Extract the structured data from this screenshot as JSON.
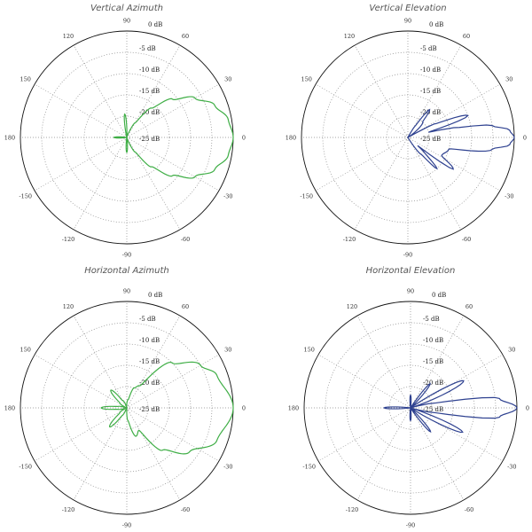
{
  "chart_data": [
    {
      "type": "polar-line",
      "title": "Vertical Azimuth",
      "color": "#3fae46",
      "r_unit": "dB",
      "r_range": [
        -25,
        0
      ],
      "ring_labels": [
        "0 dB",
        "-5 dB",
        "-10 dB",
        "-15 dB",
        "-20 dB",
        "-25 dB"
      ],
      "angle_labels": [
        "0",
        "30",
        "60",
        "90",
        "120",
        "150",
        "180",
        "-150",
        "-120",
        "-90",
        "-60",
        "-30"
      ],
      "points": [
        [
          -180,
          -22
        ],
        [
          -170,
          -25
        ],
        [
          -100,
          -25
        ],
        [
          -90,
          -21.5
        ],
        [
          -80,
          -25
        ],
        [
          -75,
          -25
        ],
        [
          -70,
          -24
        ],
        [
          -60,
          -21
        ],
        [
          -50,
          -16
        ],
        [
          -40,
          -11
        ],
        [
          -30,
          -6.5
        ],
        [
          -20,
          -3
        ],
        [
          -10,
          -0.8
        ],
        [
          0,
          0
        ],
        [
          10,
          -0.8
        ],
        [
          20,
          -3
        ],
        [
          30,
          -6.5
        ],
        [
          40,
          -11
        ],
        [
          50,
          -16
        ],
        [
          60,
          -21
        ],
        [
          70,
          -24
        ],
        [
          78,
          -25
        ],
        [
          86,
          -25
        ],
        [
          95,
          -19.5
        ],
        [
          104,
          -25
        ],
        [
          170,
          -25
        ],
        [
          180,
          -22
        ]
      ]
    },
    {
      "type": "polar-line",
      "title": "Vertical Elevation",
      "color": "#2e4190",
      "r_unit": "dB",
      "r_range": [
        -25,
        0
      ],
      "ring_labels": [
        "0 dB",
        "-5 dB",
        "-10 dB",
        "-15 dB",
        "-20 dB",
        "-25 dB"
      ],
      "angle_labels": [
        "0",
        "30",
        "60",
        "90",
        "120",
        "150",
        "180",
        "-150",
        "-120",
        "-90",
        "-60",
        "-30"
      ],
      "points": [
        [
          -180,
          -25
        ],
        [
          -60,
          -25
        ],
        [
          -52,
          -20
        ],
        [
          -47,
          -15
        ],
        [
          -42,
          -20
        ],
        [
          -40,
          -22
        ],
        [
          -35,
          -12
        ],
        [
          -28,
          -16
        ],
        [
          -16,
          -15
        ],
        [
          -8,
          -5
        ],
        [
          -4,
          -1
        ],
        [
          0,
          0
        ],
        [
          4,
          -1
        ],
        [
          8,
          -5
        ],
        [
          12,
          -14
        ],
        [
          14,
          -20
        ],
        [
          20,
          -10
        ],
        [
          27,
          -18
        ],
        [
          30,
          -25
        ],
        [
          46,
          -20
        ],
        [
          52,
          -16.7
        ],
        [
          58,
          -22
        ],
        [
          62,
          -25
        ],
        [
          180,
          -25
        ]
      ]
    },
    {
      "type": "polar-line",
      "title": "Horizontal Azimuth",
      "color": "#3fae46",
      "r_unit": "dB",
      "r_range": [
        -25,
        0
      ],
      "ring_labels": [
        "0 dB",
        "-5 dB",
        "-10 dB",
        "-15 dB",
        "-20 dB",
        "-25 dB"
      ],
      "angle_labels": [
        "0",
        "30",
        "60",
        "90",
        "120",
        "150",
        "180",
        "-150",
        "-120",
        "-90",
        "-60",
        "-30"
      ],
      "points": [
        [
          -180,
          -19
        ],
        [
          -170,
          -23
        ],
        [
          -160,
          -25
        ],
        [
          -145,
          -23
        ],
        [
          -132,
          -19
        ],
        [
          -120,
          -23
        ],
        [
          -110,
          -25
        ],
        [
          -95,
          -25
        ],
        [
          -85,
          -22
        ],
        [
          -72,
          -18
        ],
        [
          -62,
          -19
        ],
        [
          -50,
          -12
        ],
        [
          -35,
          -7
        ],
        [
          -20,
          -2.5
        ],
        [
          0,
          0
        ],
        [
          20,
          -2.5
        ],
        [
          30,
          -5
        ],
        [
          45,
          -10
        ],
        [
          60,
          -19
        ],
        [
          70,
          -20
        ],
        [
          80,
          -23
        ],
        [
          100,
          -25
        ],
        [
          120,
          -23
        ],
        [
          132,
          -19.4
        ],
        [
          145,
          -23
        ],
        [
          160,
          -25
        ],
        [
          170,
          -23
        ],
        [
          180,
          -19
        ]
      ]
    },
    {
      "type": "polar-line",
      "title": "Horizontal Elevation",
      "color": "#2e4190",
      "r_unit": "dB",
      "r_range": [
        -25,
        0
      ],
      "ring_labels": [
        "0 dB",
        "-5 dB",
        "-10 dB",
        "-15 dB",
        "-20 dB",
        "-25 dB"
      ],
      "angle_labels": [
        "0",
        "30",
        "60",
        "90",
        "120",
        "150",
        "180",
        "-150",
        "-120",
        "-90",
        "-60",
        "-30"
      ],
      "points": [
        [
          -180,
          -18.8
        ],
        [
          -172,
          -25
        ],
        [
          -100,
          -25
        ],
        [
          -90,
          -22
        ],
        [
          -80,
          -25
        ],
        [
          -58,
          -25
        ],
        [
          -50,
          -17.7
        ],
        [
          -42,
          -25
        ],
        [
          -34,
          -25
        ],
        [
          -25,
          -11.5
        ],
        [
          -16,
          -25
        ],
        [
          -12,
          -20
        ],
        [
          -6,
          -4
        ],
        [
          0,
          0
        ],
        [
          6,
          -4
        ],
        [
          12,
          -20
        ],
        [
          16,
          -25
        ],
        [
          27,
          -11
        ],
        [
          36,
          -25
        ],
        [
          42,
          -25
        ],
        [
          51,
          -17.7
        ],
        [
          58,
          -25
        ],
        [
          80,
          -25
        ],
        [
          90,
          -22
        ],
        [
          100,
          -25
        ],
        [
          172,
          -25
        ],
        [
          180,
          -18.8
        ]
      ]
    }
  ]
}
